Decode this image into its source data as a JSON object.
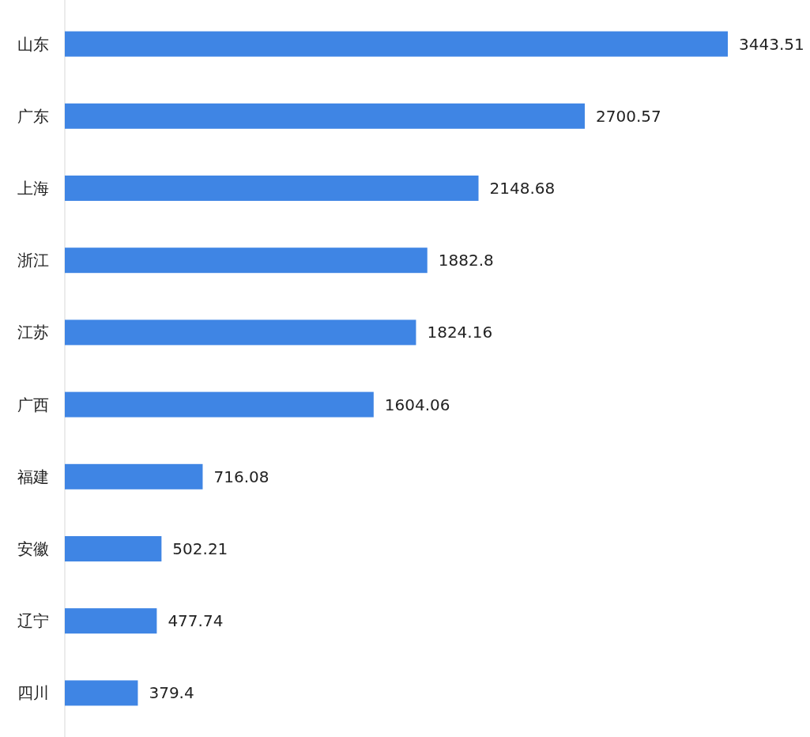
{
  "chart_data": {
    "type": "bar",
    "orientation": "horizontal",
    "categories": [
      "山东",
      "广东",
      "上海",
      "浙江",
      "江苏",
      "广西",
      "福建",
      "安徽",
      "辽宁",
      "四川"
    ],
    "values": [
      3443.51,
      2700.57,
      2148.68,
      1882.8,
      1824.16,
      1604.06,
      716.08,
      502.21,
      477.74,
      379.4
    ],
    "color": "#3f85e4",
    "data_labels": true
  }
}
